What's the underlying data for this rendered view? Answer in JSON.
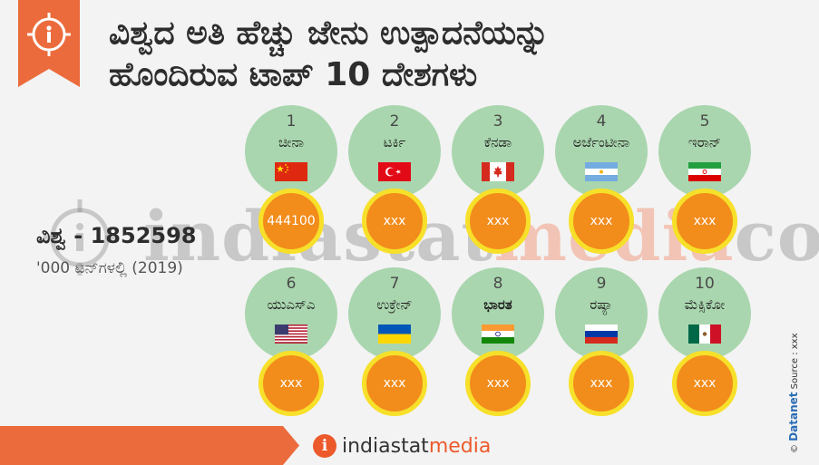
{
  "title_line1": "ವಿಶ್ವದ ಅತಿ ಹೆಚ್ಚು ಜೇನು ಉತ್ಪಾದನೆಯನ್ನು",
  "title_line2": "ಹೊಂದಿರುವ ಟಾಪ್ 10 ದೇಶಗಳು",
  "world_label": "ವಿಶ್ವ - 1852598",
  "world_unit": "'000 ಟನ್‌ಗಳಲ್ಲಿ (2019)",
  "watermark_text_a": "indiastat",
  "watermark_text_b": "media",
  "watermark_text_c": "com",
  "countries": [
    {
      "rank": "1",
      "name": "ಚೀನಾ",
      "value": "444100",
      "flag": "china-flag-icon"
    },
    {
      "rank": "2",
      "name": "ಟರ್ಕಿ",
      "value": "xxx",
      "flag": "turkey-flag-icon"
    },
    {
      "rank": "3",
      "name": "ಕೆನಡಾ",
      "value": "xxx",
      "flag": "canada-flag-icon"
    },
    {
      "rank": "4",
      "name": "ಅರ್ಜೆಂಟೀನಾ",
      "value": "xxx",
      "flag": "argentina-flag-icon"
    },
    {
      "rank": "5",
      "name": "ಇರಾನ್",
      "value": "xxx",
      "flag": "iran-flag-icon"
    },
    {
      "rank": "6",
      "name": "ಯುಎಸ್‌ಎ",
      "value": "xxx",
      "flag": "usa-flag-icon"
    },
    {
      "rank": "7",
      "name": "ಉಕ್ರೇನ್",
      "value": "xxx",
      "flag": "ukraine-flag-icon"
    },
    {
      "rank": "8",
      "name": "ಭಾರತ",
      "value": "xxx",
      "flag": "india-flag-icon"
    },
    {
      "rank": "9",
      "name": "ರಷ್ಯಾ",
      "value": "xxx",
      "flag": "russia-flag-icon"
    },
    {
      "rank": "10",
      "name": "ಮೆಕ್ಸಿಕೋ",
      "value": "xxx",
      "flag": "mexico-flag-icon"
    }
  ],
  "footer": {
    "brand": "indiastat",
    "brand_accent": "media"
  },
  "credit": {
    "copyright": "©",
    "datanet": "Datanet",
    "source": "Source : xxx"
  },
  "colors": {
    "circle": "#a9d6ae",
    "value_fill": "#f28c1b",
    "value_ring": "#f7e02a",
    "accent": "#ec5a2b"
  }
}
